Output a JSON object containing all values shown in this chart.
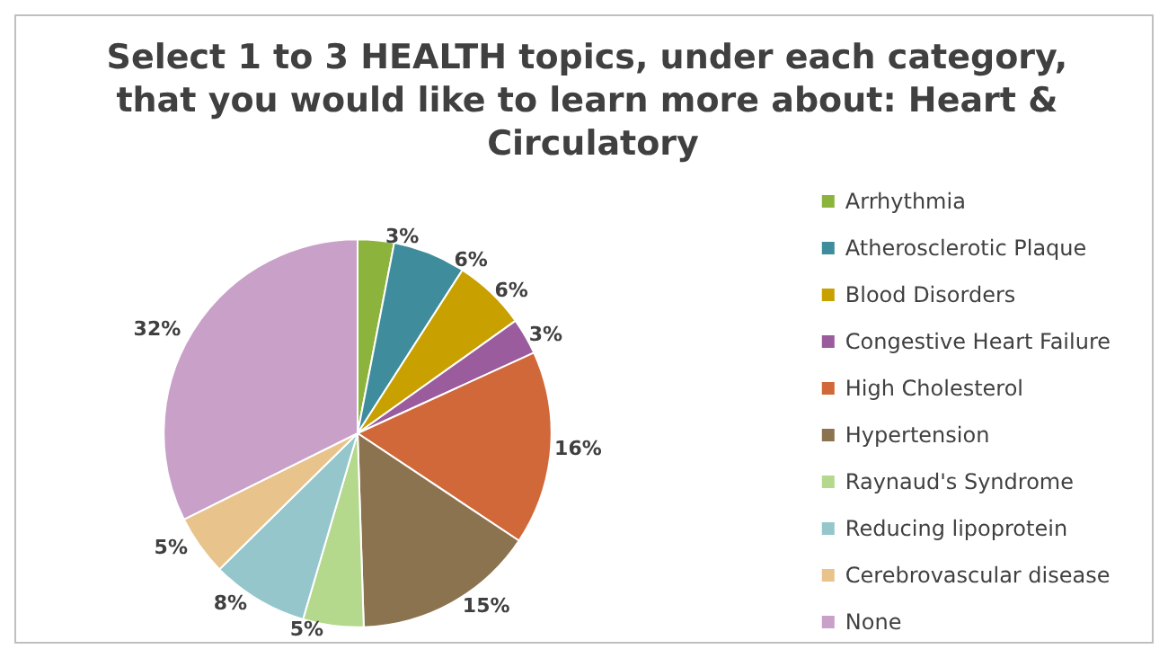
{
  "chart_data": {
    "type": "pie",
    "title": "Select 1 to 3 HEALTH topics, under each category, that you would like to learn more about: Heart & Circulatory",
    "categories": [
      "Arrhythmia",
      "Atherosclerotic Plaque",
      "Blood Disorders",
      "Congestive Heart Failure",
      "High Cholesterol",
      "Hypertension",
      "Raynaud's Syndrome",
      "Reducing lipoprotein",
      "Cerebrovascular disease",
      "None"
    ],
    "values": [
      3,
      6,
      6,
      3,
      16,
      15,
      5,
      8,
      5,
      32
    ],
    "colors": [
      "#8cb43c",
      "#3f8c9c",
      "#c8a000",
      "#9a5c9c",
      "#d0683a",
      "#8c7350",
      "#b4d88c",
      "#94c6cc",
      "#e8c48c",
      "#c8a0c8"
    ],
    "value_labels": [
      "3%",
      "6%",
      "6%",
      "3%",
      "16%",
      "15%",
      "5%",
      "8%",
      "5%",
      "32%"
    ],
    "legend": "right"
  }
}
